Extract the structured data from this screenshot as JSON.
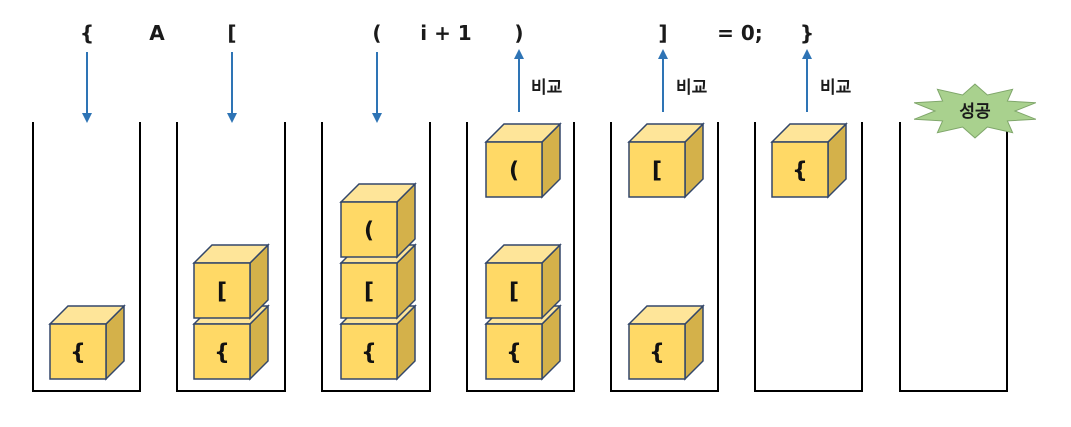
{
  "tokens": [
    "{",
    "A",
    "[",
    "(",
    "i + 1",
    ")",
    "]",
    "= 0;",
    "}"
  ],
  "compare_label": "비교",
  "success_label": "성공",
  "colors": {
    "box_front": "#ffd966",
    "box_top": "#fee599",
    "box_side": "#d4b14a",
    "box_stroke": "#33476a",
    "arrow": "#2e74b5",
    "star_fill": "#a9d18e"
  },
  "steps": [
    {
      "arrow": "push",
      "stack": [
        "{"
      ],
      "incoming": null
    },
    {
      "arrow": "push",
      "stack": [
        "{",
        "["
      ],
      "incoming": null
    },
    {
      "arrow": "push",
      "stack": [
        "{",
        "[",
        "("
      ],
      "incoming": null
    },
    {
      "arrow": "pop",
      "stack": [
        "{",
        "["
      ],
      "incoming": "("
    },
    {
      "arrow": "pop",
      "stack": [
        "{"
      ],
      "incoming": "["
    },
    {
      "arrow": "pop",
      "stack": [],
      "incoming": "{"
    },
    {
      "arrow": "none",
      "stack": [],
      "incoming": null,
      "result": "success"
    }
  ]
}
